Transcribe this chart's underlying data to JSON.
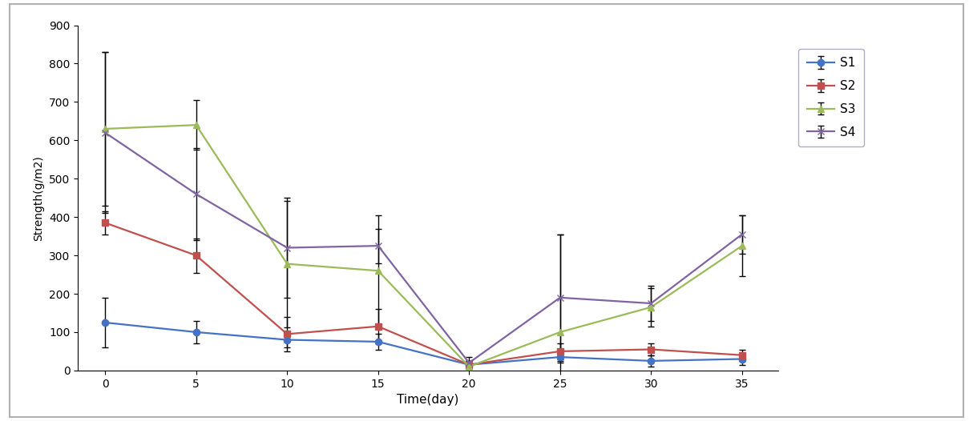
{
  "x": [
    0,
    5,
    10,
    15,
    20,
    25,
    30,
    35
  ],
  "S1": [
    125,
    100,
    80,
    75,
    15,
    35,
    25,
    30
  ],
  "S2": [
    385,
    300,
    95,
    115,
    15,
    50,
    55,
    40
  ],
  "S3": [
    630,
    640,
    278,
    260,
    10,
    100,
    165,
    325
  ],
  "S4": [
    620,
    460,
    320,
    325,
    20,
    190,
    175,
    355
  ],
  "S1_err": [
    65,
    30,
    20,
    20,
    10,
    15,
    15,
    15
  ],
  "S2_err": [
    30,
    45,
    45,
    45,
    10,
    20,
    15,
    15
  ],
  "S3_err": [
    200,
    65,
    165,
    145,
    10,
    255,
    50,
    80
  ],
  "S4_err": [
    210,
    120,
    130,
    45,
    15,
    165,
    45,
    50
  ],
  "colors": [
    "#4472C4",
    "#C0504D",
    "#9BBB59",
    "#8064A2"
  ],
  "markers": [
    "o",
    "s",
    "^",
    "x"
  ],
  "labels": [
    "S1",
    "S2",
    "S3",
    "S4"
  ],
  "xlabel": "Time(day)",
  "ylabel": "Strength(g/m2)",
  "ylim": [
    0,
    900
  ],
  "yticks": [
    0,
    100,
    200,
    300,
    400,
    500,
    600,
    700,
    800,
    900
  ],
  "xticks": [
    0,
    5,
    10,
    15,
    20,
    25,
    30,
    35
  ],
  "background_color": "#ffffff",
  "outer_frame_color": "#cccccc",
  "marker_size": 6,
  "linewidth": 1.6,
  "capsize": 3,
  "elinewidth": 1.0
}
